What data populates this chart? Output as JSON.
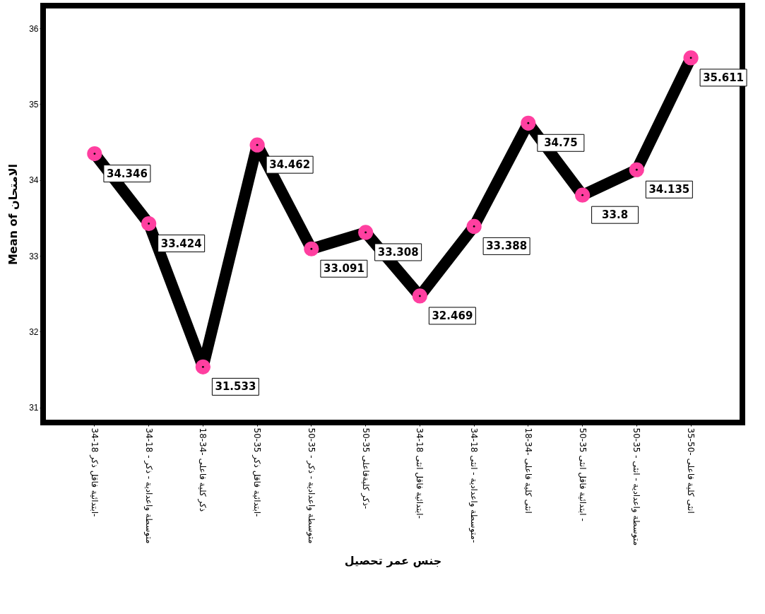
{
  "chart_data": {
    "type": "line",
    "xlabel": "جنس عمر  تحصيل",
    "ylabel": "Mean of الامتحان",
    "categories": [
      "ابتدائية فاقل ذكر 18-34-",
      "متوسطة واعدادية - ذكر - 18-34",
      "18-34- ذكر كلية فاعلى",
      "ابتدائية فاقل ذكر 35-50-",
      "متوسطة واعدادية - ذكر - 35-50",
      "ذكر كليةفاعلى 35-50-",
      "ابتدائية فاقل انثى 18-34-",
      "متوسطة واعدادية - انثى 18-34-",
      "18-34- انثى كلية فاعلى",
      "ابتدائية فاقل انثى 35-50 -",
      "متوسطة واعدادية - انثى - 35-50",
      "35-50- انثى كلية فاعلى"
    ],
    "series": [
      {
        "color": "#000000",
        "values": [
          34.346,
          33.424,
          31.533,
          34.462,
          33.091,
          33.308,
          32.469,
          33.388,
          34.75,
          33.8,
          34.135,
          35.611
        ]
      }
    ],
    "ylim": [
      30.8,
      36.3
    ],
    "yticks": [
      31,
      32,
      33,
      34,
      35,
      36
    ],
    "grid": false,
    "marker": "circle",
    "data_labels": true
  }
}
